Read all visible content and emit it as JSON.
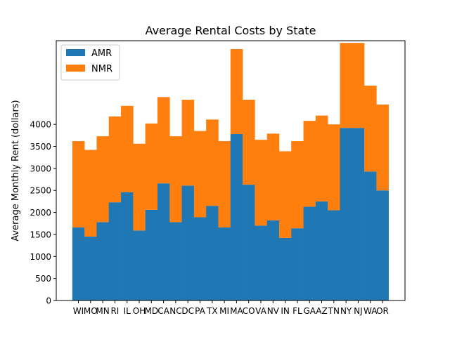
{
  "chart_data": {
    "type": "bar",
    "stacked": true,
    "title": "Average Rental Costs by State",
    "xlabel": "",
    "ylabel": "Average Monthly Rent (dollars)",
    "ylim": [
      0,
      5900
    ],
    "yticks": [
      0,
      500,
      1000,
      1500,
      2000,
      2500,
      3000,
      3500,
      4000
    ],
    "legend_position": "top-left",
    "grid": false,
    "categories": [
      "WI",
      "MO",
      "MN",
      "RI",
      "IL",
      "OH",
      "MD",
      "CA",
      "NC",
      "DC",
      "PA",
      "TX",
      "MI",
      "MA",
      "CO",
      "VA",
      "NV",
      "IN",
      "FL",
      "GA",
      "AZ",
      "TN",
      "NY",
      "NJ",
      "WA",
      "OR"
    ],
    "series": [
      {
        "name": "AMR",
        "color": "#1f77b4",
        "values": [
          1660,
          1450,
          1780,
          2230,
          2460,
          1590,
          2060,
          2660,
          1780,
          2610,
          1890,
          2150,
          1660,
          3780,
          2630,
          1700,
          1820,
          1420,
          1640,
          2130,
          2250,
          2050,
          3920,
          3920,
          2930,
          2500
        ]
      },
      {
        "name": "NMR",
        "color": "#ff7f0e",
        "values": [
          1960,
          1970,
          1950,
          1950,
          1960,
          1970,
          1960,
          1960,
          1950,
          1950,
          1960,
          1960,
          1960,
          1930,
          1930,
          1950,
          1970,
          1970,
          1980,
          1950,
          1950,
          1950,
          1930,
          1930,
          1950,
          1950
        ]
      }
    ]
  }
}
